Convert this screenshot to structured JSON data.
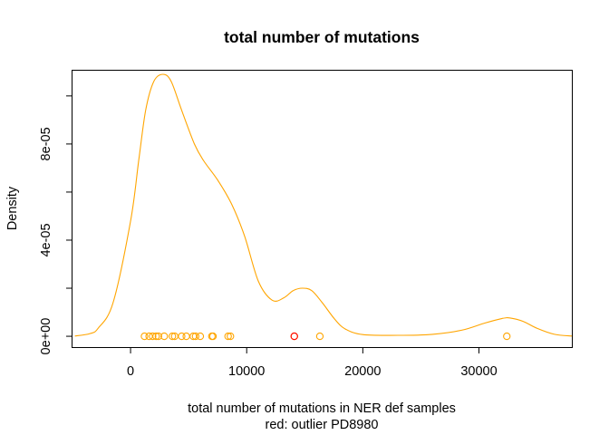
{
  "chart_data": {
    "type": "density",
    "title": "total number of mutations",
    "xlabel": "total number of mutations in NER def samples",
    "xlabel_line2": "red: outlier PD8980",
    "ylabel": "Density",
    "xlim": [
      -5000,
      38000
    ],
    "ylim": [
      -4.5e-06,
      0.0001105
    ],
    "x_ticks": [
      0,
      10000,
      20000,
      30000
    ],
    "x_tick_labels": [
      "0",
      "10000",
      "20000",
      "30000"
    ],
    "y_ticks": [
      0,
      2e-05,
      4e-05,
      6e-05,
      8e-05,
      0.0001
    ],
    "y_tick_labels": [
      "0e+00",
      "",
      "4e-05",
      "",
      "8e-05",
      ""
    ],
    "density_curve": [
      [
        -4800,
        1e-07
      ],
      [
        -3500,
        1.1e-06
      ],
      [
        -2800,
        3.3e-06
      ],
      [
        -1500,
        1.4e-05
      ],
      [
        0,
        4.8e-05
      ],
      [
        700,
        7.3e-05
      ],
      [
        1300,
        9.4e-05
      ],
      [
        2000,
        0.000106
      ],
      [
        2800,
        0.000109
      ],
      [
        3500,
        0.000106
      ],
      [
        4400,
        9.4e-05
      ],
      [
        5500,
        8e-05
      ],
      [
        6300,
        7.3e-05
      ],
      [
        7500,
        6.5e-05
      ],
      [
        8700,
        5.5e-05
      ],
      [
        9800,
        4.2e-05
      ],
      [
        11000,
        2.3e-05
      ],
      [
        12200,
        1.5e-05
      ],
      [
        13200,
        1.6e-05
      ],
      [
        14000,
        1.9e-05
      ],
      [
        14800,
        2e-05
      ],
      [
        15600,
        1.9e-05
      ],
      [
        16500,
        1.4e-05
      ],
      [
        17600,
        7e-06
      ],
      [
        18500,
        3e-06
      ],
      [
        20000,
        7e-07
      ],
      [
        23000,
        4e-07
      ],
      [
        26000,
        8e-07
      ],
      [
        28500,
        2.5e-06
      ],
      [
        30500,
        5.5e-06
      ],
      [
        32000,
        7.4e-06
      ],
      [
        32700,
        7.6e-06
      ],
      [
        33800,
        6.2e-06
      ],
      [
        35000,
        3.3e-06
      ],
      [
        36500,
        8e-07
      ],
      [
        38000,
        1e-07
      ]
    ],
    "rug_points": [
      1200,
      1600,
      1900,
      2200,
      2400,
      2900,
      3600,
      3800,
      4400,
      4800,
      5400,
      5600,
      6000,
      7000,
      7100,
      8400,
      8600,
      14100,
      16300,
      32400
    ],
    "outlier_points": [
      14100
    ],
    "colors": {
      "curve": "#FFA500",
      "points": "#FFA500",
      "outlier": "#FF0000",
      "axis": "#000000"
    },
    "grid": false
  }
}
